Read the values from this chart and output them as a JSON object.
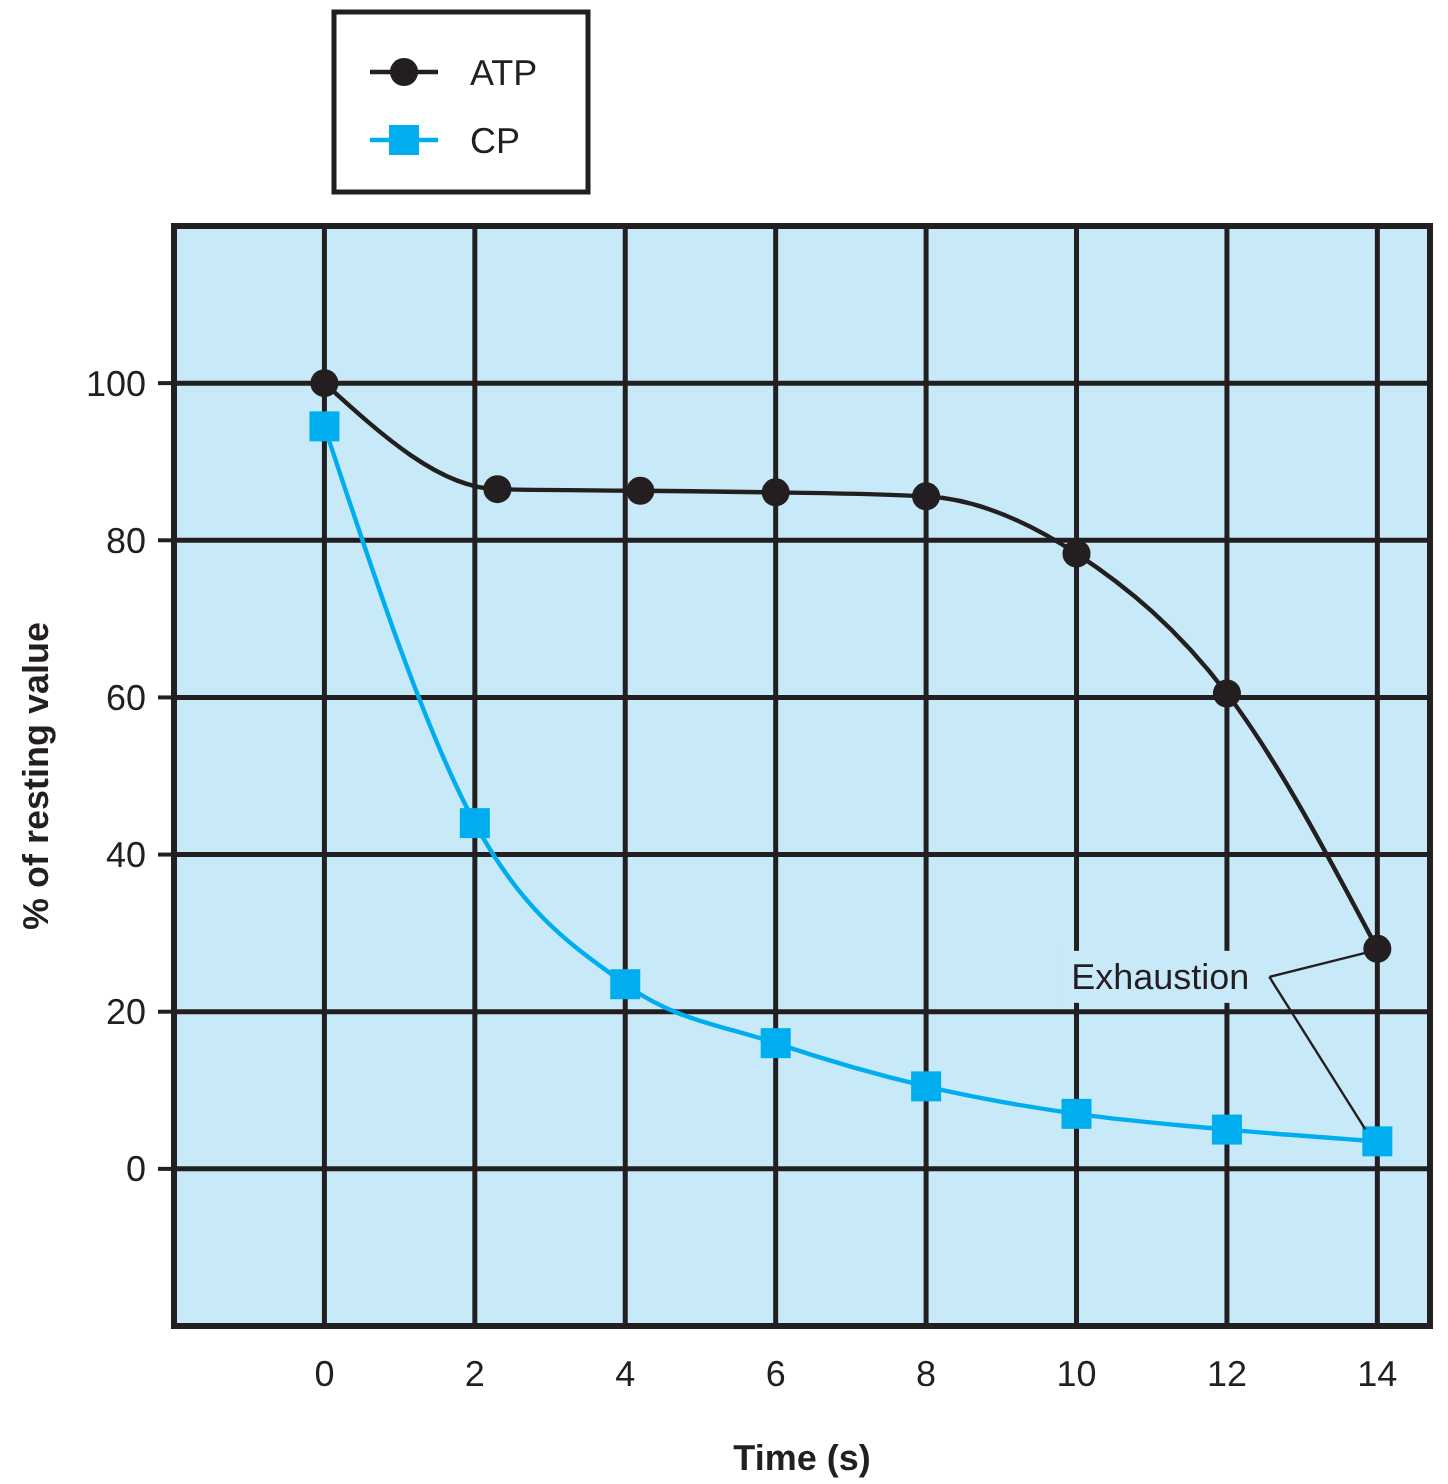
{
  "chart_data": {
    "type": "line",
    "xlabel": "Time (s)",
    "ylabel": "% of resting value",
    "xlim": [
      -2,
      14.7
    ],
    "ylim": [
      -20,
      120
    ],
    "xticks": [
      0,
      2,
      4,
      6,
      8,
      10,
      12,
      14
    ],
    "yticks": [
      0,
      20,
      40,
      60,
      80,
      100
    ],
    "grid": true,
    "legend": "top left",
    "annotations": [
      {
        "text": "Exhaustion",
        "x": 14,
        "y": 28
      }
    ],
    "series": [
      {
        "name": "ATP",
        "color": "#231f20",
        "marker": "circle",
        "x": [
          0,
          2.3,
          4.2,
          6,
          8,
          10,
          12,
          14
        ],
        "values": [
          100,
          86.5,
          86.3,
          86.1,
          85.6,
          78.3,
          60.5,
          28
        ]
      },
      {
        "name": "CP",
        "color": "#00aeef",
        "marker": "square",
        "x": [
          0,
          2,
          4,
          6,
          8,
          10,
          12,
          14
        ],
        "values": [
          94.5,
          44,
          23.5,
          16,
          10.5,
          7,
          5,
          3.5
        ]
      }
    ]
  }
}
